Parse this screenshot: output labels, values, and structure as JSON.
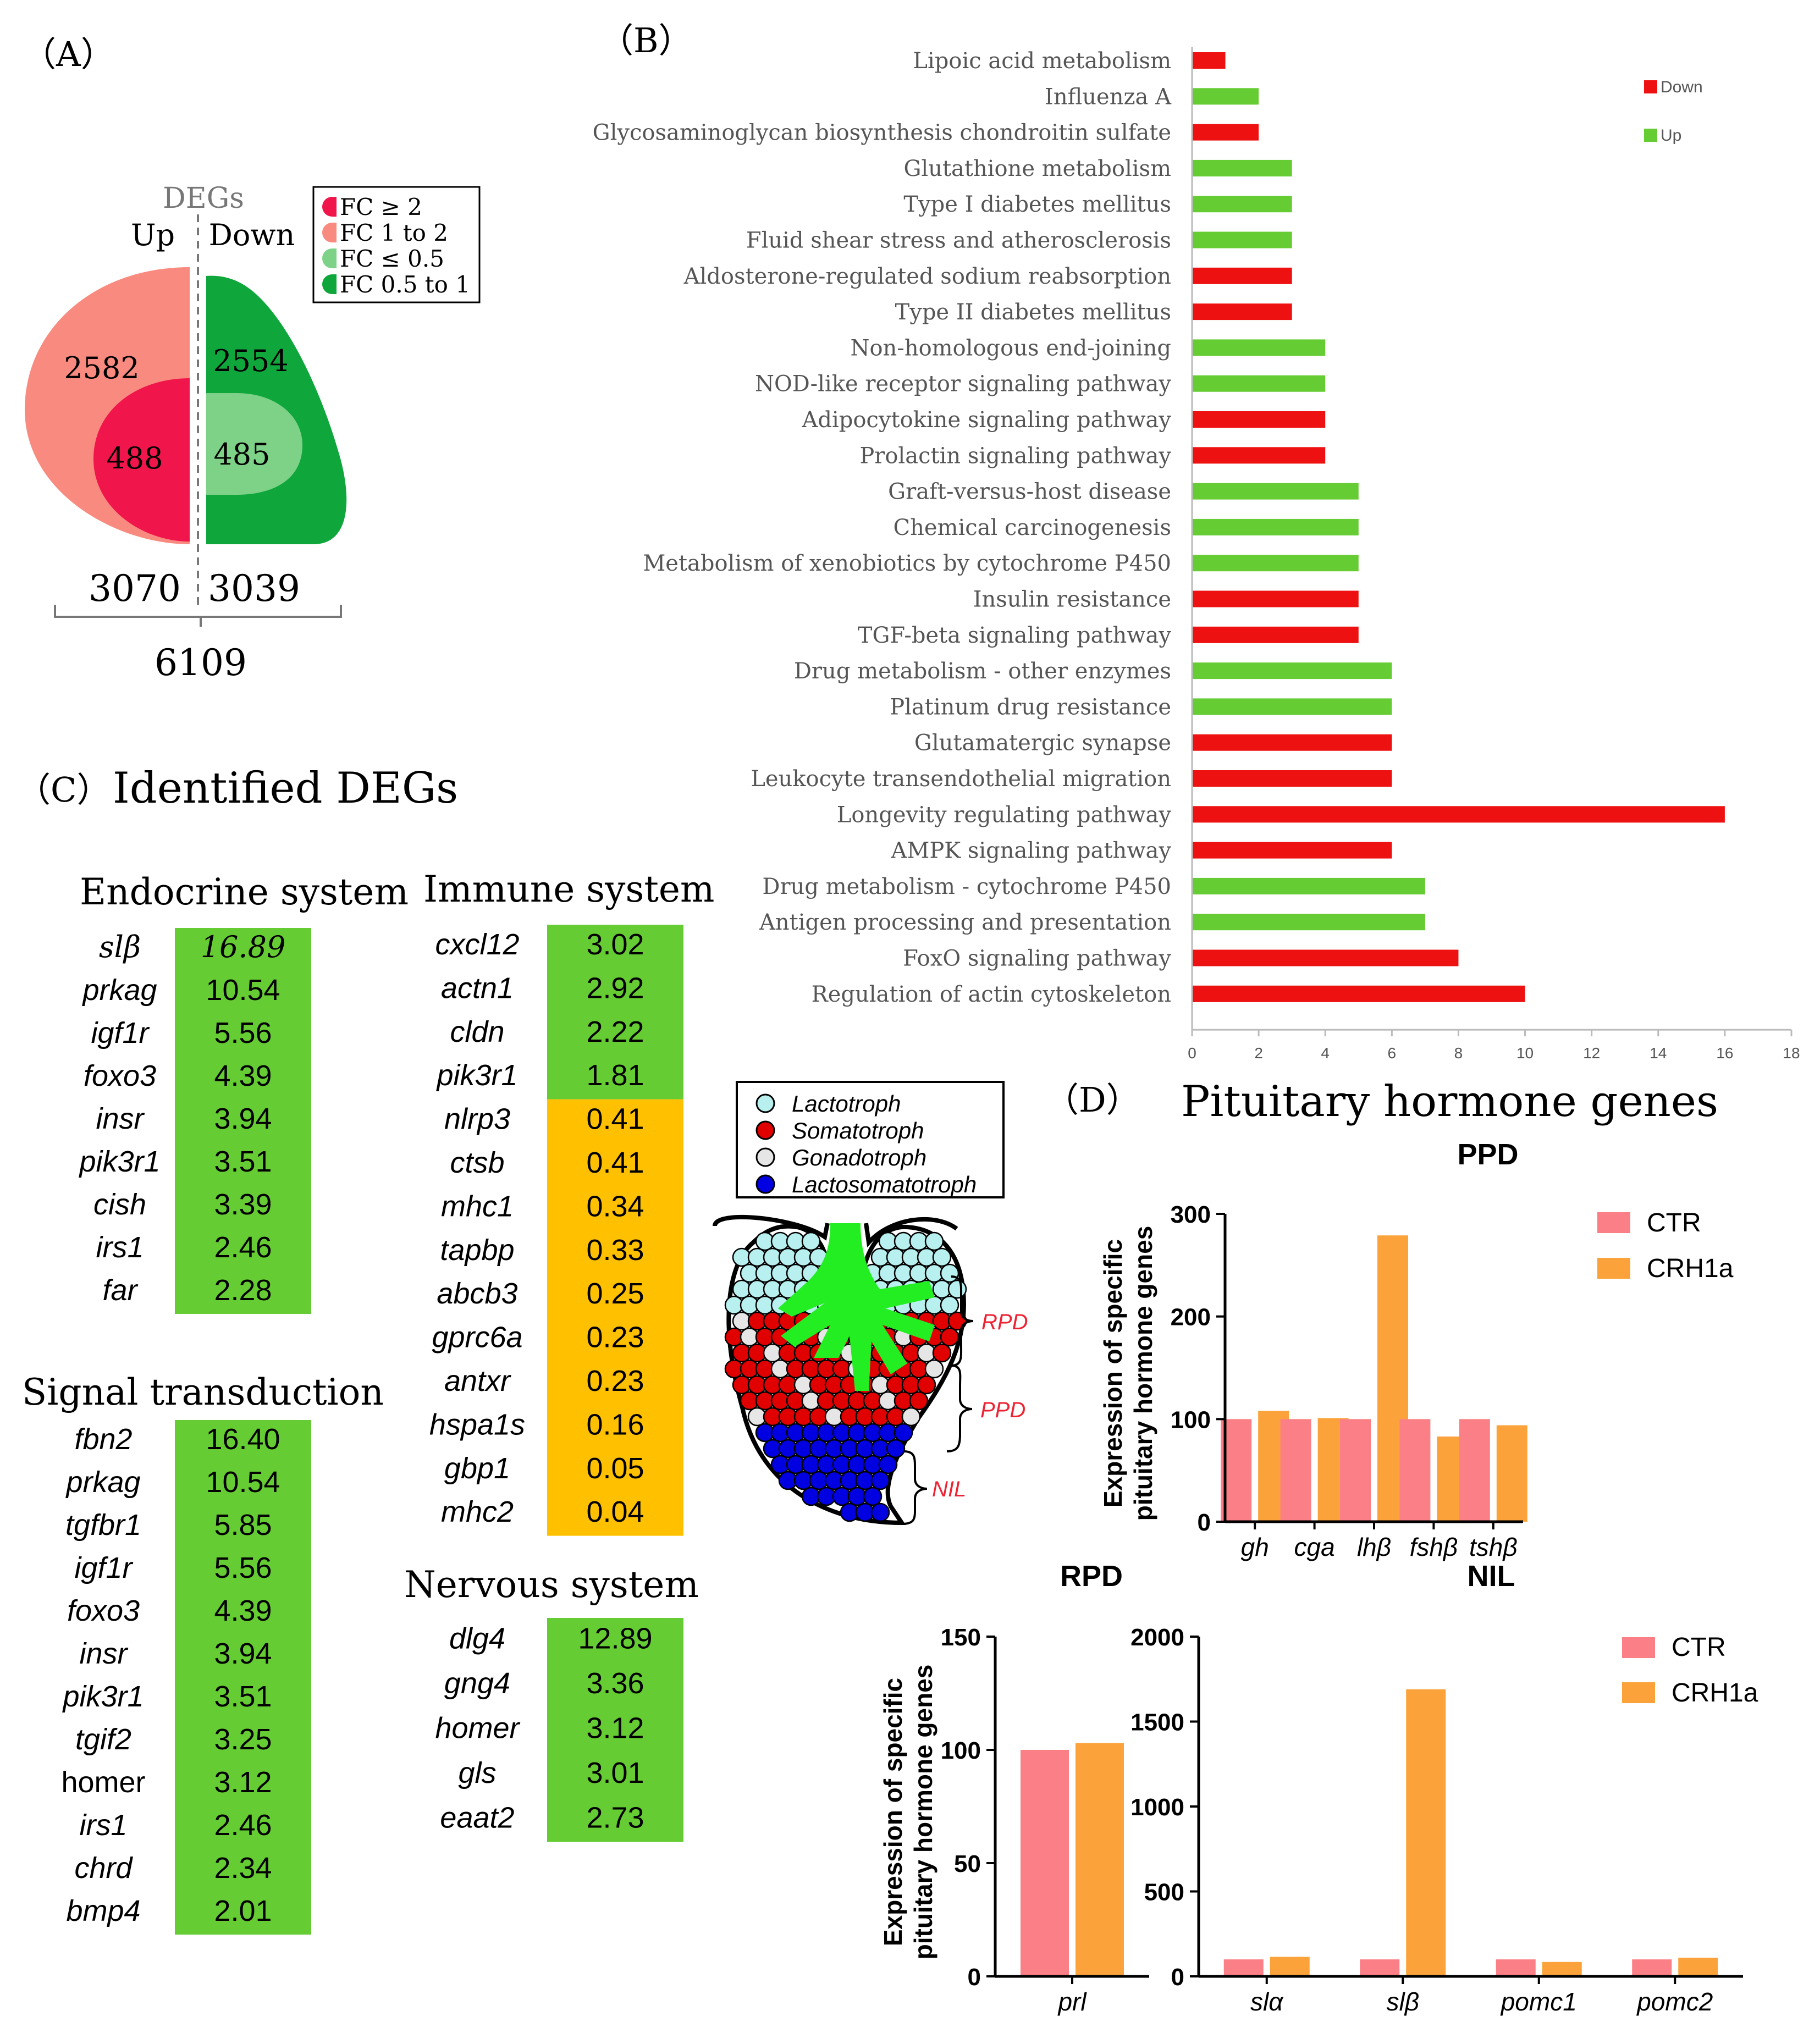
{
  "panel_labels": {
    "a": "（A）",
    "b": "（B）",
    "c": "（C）",
    "d": "（D）"
  },
  "panel_a": {
    "title": "DEGs",
    "up_label": "Up",
    "down_label": "Down",
    "up_outer": "2582",
    "up_inner": "488",
    "down_outer": "2554",
    "down_inner": "485",
    "up_total": "3070",
    "down_total": "3039",
    "grand_total": "6109",
    "legend": [
      {
        "label": "FC ≥ 2",
        "color": "#f0154a"
      },
      {
        "label": "FC 1 to 2",
        "color": "#f88a80"
      },
      {
        "label": "FC ≤ 0.5",
        "color": "#7dd287"
      },
      {
        "label": "FC 0.5 to 1",
        "color": "#0fa63c"
      }
    ],
    "colors": {
      "up_outer": "#f88a80",
      "up_inner": "#f0154a",
      "down_outer": "#0fa63c",
      "down_inner": "#7dd287"
    }
  },
  "chart_data": [
    {
      "type": "bar",
      "orientation": "horizontal",
      "xlim": [
        0,
        18
      ],
      "xticks": [
        "0",
        "2",
        "4",
        "6",
        "8",
        "10",
        "12",
        "14",
        "16",
        "18"
      ],
      "legend_position": "top-right",
      "colors": {
        "Down": "#ee1111",
        "Up": "#66cc33"
      },
      "legend": [
        {
          "name": "Down",
          "color": "#ee1111"
        },
        {
          "name": "Up",
          "color": "#66cc33"
        }
      ],
      "categories": [
        "Lipoic acid metabolism",
        "Influenza A",
        "Glycosaminoglycan biosynthesis chondroitin sulfate",
        "Glutathione metabolism",
        "Type I diabetes mellitus",
        "Fluid shear stress and atherosclerosis",
        "Aldosterone-regulated sodium reabsorption",
        "Type II diabetes mellitus",
        "Non-homologous end-joining",
        "NOD-like receptor signaling pathway",
        "Adipocytokine signaling pathway",
        "Prolactin signaling pathway",
        "Graft-versus-host disease",
        "Chemical carcinogenesis",
        "Metabolism of xenobiotics by cytochrome P450",
        "Insulin resistance",
        "TGF-beta signaling pathway",
        "Drug metabolism - other enzymes",
        "Platinum drug resistance",
        "Glutamatergic synapse",
        "Leukocyte transendothelial migration",
        "Longevity regulating pathway",
        "AMPK signaling pathway",
        "Drug metabolism - cytochrome P450",
        "Antigen processing and presentation",
        "FoxO signaling pathway",
        "Regulation of actin cytoskeleton"
      ],
      "values": [
        1,
        2,
        2,
        3,
        3,
        3,
        3,
        3,
        4,
        4,
        4,
        4,
        5,
        5,
        5,
        5,
        5,
        6,
        6,
        6,
        6,
        16,
        6,
        7,
        7,
        8,
        10
      ],
      "direction": [
        "Down",
        "Up",
        "Down",
        "Up",
        "Up",
        "Up",
        "Down",
        "Down",
        "Up",
        "Up",
        "Down",
        "Down",
        "Up",
        "Up",
        "Up",
        "Down",
        "Down",
        "Up",
        "Up",
        "Down",
        "Down",
        "Down",
        "Down",
        "Up",
        "Up",
        "Down",
        "Down"
      ]
    },
    {
      "type": "bar",
      "title": "PPD",
      "ylabel_lines": [
        "Expression of specific",
        "pituitary hormone genes"
      ],
      "ylim": [
        0,
        300
      ],
      "yticks": [
        "0",
        "100",
        "200",
        "300"
      ],
      "categories": [
        "gh",
        "cga",
        "lhβ",
        "fshβ",
        "tshβ"
      ],
      "series": [
        {
          "name": "CTR",
          "color": "#fb7f86",
          "values": [
            100,
            100,
            100,
            100,
            100
          ]
        },
        {
          "name": "CRH1a",
          "color": "#fba33a",
          "values": [
            108,
            101,
            279,
            83,
            94
          ]
        }
      ]
    },
    {
      "type": "bar",
      "title": "RPD",
      "ylabel_lines": [
        "Expression of specific",
        "pituitary hormone genes"
      ],
      "ylim": [
        0,
        150
      ],
      "yticks": [
        "0",
        "50",
        "100",
        "150"
      ],
      "categories": [
        "prl"
      ],
      "series": [
        {
          "name": "CTR",
          "color": "#fb7f86",
          "values": [
            100
          ]
        },
        {
          "name": "CRH1a",
          "color": "#fba33a",
          "values": [
            103
          ]
        }
      ]
    },
    {
      "type": "bar",
      "title": "NIL",
      "ylim": [
        0,
        2000
      ],
      "yticks": [
        "0",
        "500",
        "1000",
        "1500",
        "2000"
      ],
      "categories": [
        "slα",
        "slβ",
        "pomc1",
        "pomc2"
      ],
      "series": [
        {
          "name": "CTR",
          "color": "#fb7f86",
          "values": [
            100,
            100,
            100,
            100
          ]
        },
        {
          "name": "CRH1a",
          "color": "#fba33a",
          "values": [
            115,
            1690,
            85,
            110
          ]
        }
      ]
    }
  ],
  "panel_c": {
    "title": "Identified DEGs",
    "green": "#66cc33",
    "orange": "#ffc000",
    "endocrine": {
      "title": "Endocrine system",
      "genes": [
        "slβ",
        "prkag",
        "igf1r",
        "foxo3",
        "insr",
        "pik3r1",
        "cish",
        "irs1",
        "far"
      ],
      "values": [
        "16.89",
        "10.54",
        "5.56",
        "4.39",
        "3.94",
        "3.51",
        "3.39",
        "2.46",
        "2.28"
      ]
    },
    "signal": {
      "title": "Signal transduction",
      "genes": [
        "fbn2",
        "prkag",
        "tgfbr1",
        "igf1r",
        "foxo3",
        "insr",
        "pik3r1",
        "tgif2",
        "homer",
        "irs1",
        "chrd",
        "bmp4"
      ],
      "values": [
        "16.40",
        "10.54",
        "5.85",
        "5.56",
        "4.39",
        "3.94",
        "3.51",
        "3.25",
        "3.12",
        "2.46",
        "2.34",
        "2.01"
      ]
    },
    "immune": {
      "title": "Immune system",
      "genes": [
        "cxcl12",
        "actn1",
        "cldn",
        "pik3r1",
        "nlrp3",
        "ctsb",
        "mhc1",
        "tapbp",
        "abcb3",
        "gprc6a",
        "antxr",
        "hspa1s",
        "gbp1",
        "mhc2"
      ],
      "values": [
        "3.02",
        "2.92",
        "2.22",
        "1.81",
        "0.41",
        "0.41",
        "0.34",
        "0.33",
        "0.25",
        "0.23",
        "0.23",
        "0.16",
        "0.05",
        "0.04"
      ]
    },
    "nervous": {
      "title": "Nervous system",
      "genes": [
        "dlg4",
        "gng4",
        "homer",
        "gls",
        "eaat2"
      ],
      "values": [
        "12.89",
        "3.36",
        "3.12",
        "3.01",
        "2.73"
      ]
    }
  },
  "panel_d": {
    "title": "Pituitary hormone genes",
    "legend_ctr": "CTR",
    "legend_crh": "CRH1a",
    "cell_legend": [
      {
        "label": "Lactotroph",
        "color": "#b8f0f0"
      },
      {
        "label": "Somatotroph",
        "color": "#e00000"
      },
      {
        "label": "Gonadotroph",
        "color": "#e6e6e6"
      },
      {
        "label": "Lactosomatotroph",
        "color": "#0000e0"
      }
    ],
    "region_labels": {
      "rpd": "RPD",
      "ppd": "PPD",
      "nil": "NIL"
    },
    "stalk_color": "#22ee22"
  }
}
